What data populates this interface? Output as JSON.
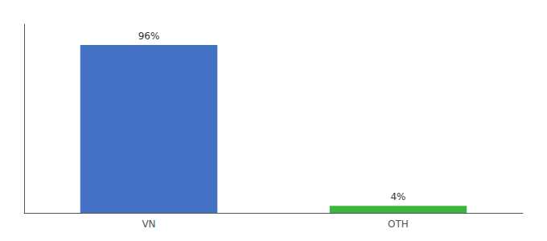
{
  "chart_data": {
    "type": "bar",
    "categories": [
      "VN",
      "OTH"
    ],
    "values": [
      96,
      4
    ],
    "value_labels": [
      "96%",
      "4%"
    ],
    "colors": [
      "#4472c4",
      "#3cb53c"
    ],
    "ylim": [
      0,
      108
    ],
    "grid": false,
    "data_labels": true,
    "tick_labels": "x"
  }
}
